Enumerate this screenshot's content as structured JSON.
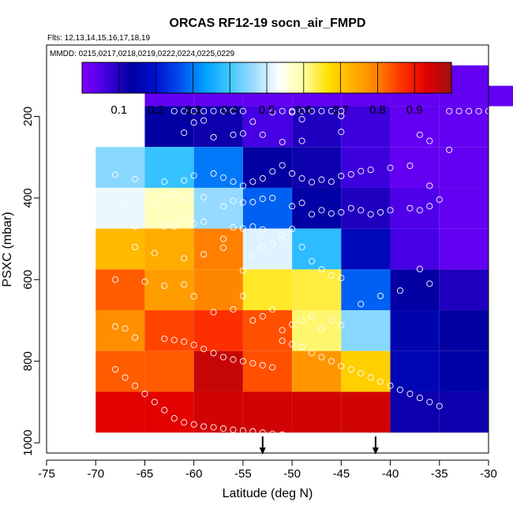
{
  "chart_data": {
    "type": "heatmap",
    "title": "ORCAS RF12-19 socn_air_FMPD",
    "flights_label": "Flts: 12,13,14,15,16,17,18,19",
    "dates_label": "MMDD: 0215,0217,0218,0219,0222,0224,0225,0229",
    "xlabel": "Latitude (deg N)",
    "ylabel": "PSXC (mbar)",
    "xlim": [
      -75,
      -30
    ],
    "ylim": [
      1025,
      25
    ],
    "x_ticks": [
      -75,
      -70,
      -65,
      -60,
      -55,
      -50,
      -45,
      -40,
      -35,
      -30
    ],
    "y_ticks": [
      200,
      400,
      600,
      800,
      1000
    ],
    "colorbar": {
      "range": [
        0,
        1
      ],
      "ticks": [
        0.1,
        0.2,
        0.3,
        0.4,
        0.5,
        0.6,
        0.7,
        0.8,
        0.9
      ],
      "colors": [
        "#7f00ff",
        "#4000e0",
        "#0000a0",
        "#0010d0",
        "#0050f0",
        "#00a0ff",
        "#40c8ff",
        "#a0dcff",
        "#ffffff",
        "#ffffa0",
        "#ffe000",
        "#ffb000",
        "#ff8000",
        "#ff3000",
        "#e00000",
        "#a01010"
      ]
    },
    "bin_width_deg": 5,
    "bin_height_mbar": 50,
    "columns": [
      {
        "lon0": -70,
        "cells": [
          [
            300,
            0.45
          ],
          [
            400,
            0.52
          ],
          [
            500,
            0.72
          ],
          [
            600,
            0.83
          ],
          [
            700,
            0.78
          ],
          [
            800,
            0.83
          ],
          [
            900,
            0.93
          ]
        ]
      },
      {
        "lon0": -65,
        "cells": [
          [
            100,
            0.03
          ],
          [
            200,
            0.13
          ],
          [
            300,
            0.39
          ],
          [
            400,
            0.58
          ],
          [
            500,
            0.74
          ],
          [
            600,
            0.76
          ],
          [
            700,
            0.85
          ],
          [
            800,
            0.83
          ],
          [
            900,
            0.93
          ]
        ]
      },
      {
        "lon0": -60,
        "cells": [
          [
            100,
            0.03
          ],
          [
            200,
            0.12
          ],
          [
            300,
            0.3
          ],
          [
            400,
            0.46
          ],
          [
            500,
            0.8
          ],
          [
            600,
            0.79
          ],
          [
            700,
            0.87
          ],
          [
            800,
            0.96
          ],
          [
            900,
            0.95
          ]
        ]
      },
      {
        "lon0": -55,
        "cells": [
          [
            100,
            0.03
          ],
          [
            200,
            0.06
          ],
          [
            300,
            0.13
          ],
          [
            400,
            0.28
          ],
          [
            500,
            0.51
          ],
          [
            600,
            0.65
          ],
          [
            700,
            0.84
          ],
          [
            800,
            0.84
          ],
          [
            900,
            0.95
          ]
        ]
      },
      {
        "lon0": -50,
        "cells": [
          [
            100,
            0.03
          ],
          [
            200,
            0.1
          ],
          [
            300,
            0.12
          ],
          [
            400,
            0.14
          ],
          [
            500,
            0.38
          ],
          [
            600,
            0.64
          ],
          [
            700,
            0.62
          ],
          [
            800,
            0.77
          ],
          [
            900,
            0.95
          ]
        ]
      },
      {
        "lon0": -45,
        "cells": [
          [
            100,
            0.03
          ],
          [
            200,
            0.07
          ],
          [
            300,
            0.07
          ],
          [
            400,
            0.1
          ],
          [
            500,
            0.17
          ],
          [
            600,
            0.28
          ],
          [
            700,
            0.45
          ],
          [
            800,
            0.69
          ],
          [
            900,
            0.95
          ]
        ]
      },
      {
        "lon0": -40,
        "cells": [
          [
            100,
            0.03
          ],
          [
            200,
            0.03
          ],
          [
            300,
            0.03
          ],
          [
            400,
            0.05
          ],
          [
            500,
            0.06
          ],
          [
            600,
            0.13
          ],
          [
            700,
            0.15
          ],
          [
            800,
            0.16
          ],
          [
            900,
            0.12
          ]
        ]
      },
      {
        "lon0": -35,
        "cells": [
          [
            100,
            0.03
          ],
          [
            200,
            0.03
          ],
          [
            300,
            0.03
          ],
          [
            400,
            0.03
          ],
          [
            500,
            0.03
          ],
          [
            600,
            0.1
          ],
          [
            700,
            0.13
          ],
          [
            800,
            0.14
          ],
          [
            900,
            0.12
          ]
        ]
      }
    ],
    "extra_cells": [
      [
        -35,
        150,
        0.03
      ],
      [
        -30,
        150,
        0.03
      ]
    ],
    "points": [
      [
        -62,
        187
      ],
      [
        -61,
        187
      ],
      [
        -60,
        187
      ],
      [
        -59,
        187
      ],
      [
        -58,
        187
      ],
      [
        -57,
        187
      ],
      [
        -56,
        187
      ],
      [
        -55,
        187
      ],
      [
        -51,
        187
      ],
      [
        -50,
        187
      ],
      [
        -49,
        187
      ],
      [
        -48,
        187
      ],
      [
        -47,
        187
      ],
      [
        -46,
        187
      ],
      [
        -45,
        187
      ],
      [
        -34,
        187
      ],
      [
        -33,
        187
      ],
      [
        -32,
        187
      ],
      [
        -31,
        187
      ],
      [
        -30,
        187
      ],
      [
        -29,
        187
      ],
      [
        -52,
        190
      ],
      [
        -50,
        190
      ],
      [
        -60,
        215
      ],
      [
        -59,
        210
      ],
      [
        -54,
        213
      ],
      [
        -49,
        207
      ],
      [
        -45,
        199
      ],
      [
        -61,
        240
      ],
      [
        -56,
        245
      ],
      [
        -55,
        242
      ],
      [
        -58,
        251
      ],
      [
        -53,
        245
      ],
      [
        -51,
        263
      ],
      [
        -49,
        260
      ],
      [
        -45,
        238
      ],
      [
        -37,
        245
      ],
      [
        -36,
        260
      ],
      [
        -34,
        282
      ],
      [
        -68,
        343
      ],
      [
        -66,
        354
      ],
      [
        -63,
        360
      ],
      [
        -61,
        357
      ],
      [
        -60,
        345
      ],
      [
        -58,
        340
      ],
      [
        -57,
        350
      ],
      [
        -56,
        360
      ],
      [
        -55,
        370
      ],
      [
        -54,
        360
      ],
      [
        -53,
        352
      ],
      [
        -52,
        335
      ],
      [
        -51,
        320
      ],
      [
        -50,
        340
      ],
      [
        -49,
        352
      ],
      [
        -48,
        361
      ],
      [
        -47,
        355
      ],
      [
        -46,
        360
      ],
      [
        -45,
        346
      ],
      [
        -44,
        342
      ],
      [
        -43,
        334
      ],
      [
        -42,
        331
      ],
      [
        -40,
        326
      ],
      [
        -38,
        321
      ],
      [
        -35,
        404
      ],
      [
        -36,
        370
      ],
      [
        -67,
        413
      ],
      [
        -64,
        410
      ],
      [
        -63,
        400
      ],
      [
        -62,
        390
      ],
      [
        -61,
        405
      ],
      [
        -59,
        398
      ],
      [
        -57,
        420
      ],
      [
        -56,
        407
      ],
      [
        -55,
        411
      ],
      [
        -54,
        410
      ],
      [
        -53,
        402
      ],
      [
        -52,
        400
      ],
      [
        -50,
        420
      ],
      [
        -49,
        412
      ],
      [
        -48,
        440
      ],
      [
        -47,
        430
      ],
      [
        -46,
        438
      ],
      [
        -45,
        435
      ],
      [
        -44,
        425
      ],
      [
        -43,
        430
      ],
      [
        -42,
        440
      ],
      [
        -41,
        435
      ],
      [
        -40,
        430
      ],
      [
        -38,
        425
      ],
      [
        -37,
        430
      ],
      [
        -36,
        420
      ],
      [
        -66,
        470
      ],
      [
        -63,
        469
      ],
      [
        -62,
        470
      ],
      [
        -61,
        450
      ],
      [
        -60,
        463
      ],
      [
        -59,
        458
      ],
      [
        -57,
        500
      ],
      [
        -56,
        472
      ],
      [
        -55,
        475
      ],
      [
        -54,
        470
      ],
      [
        -53,
        477
      ],
      [
        -51,
        490
      ],
      [
        -50,
        476
      ],
      [
        -66,
        520
      ],
      [
        -64,
        535
      ],
      [
        -61,
        548
      ],
      [
        -59,
        538
      ],
      [
        -57,
        522
      ],
      [
        -55,
        578
      ],
      [
        -54,
        540
      ],
      [
        -53,
        520
      ],
      [
        -52,
        512
      ],
      [
        -51,
        506
      ],
      [
        -49,
        520
      ],
      [
        -48,
        555
      ],
      [
        -47,
        575
      ],
      [
        -46,
        590
      ],
      [
        -45,
        596
      ],
      [
        -43,
        660
      ],
      [
        -41,
        640
      ],
      [
        -39,
        627
      ],
      [
        -36,
        610
      ],
      [
        -37,
        574
      ],
      [
        -68,
        600
      ],
      [
        -65,
        605
      ],
      [
        -63,
        615
      ],
      [
        -61,
        612
      ],
      [
        -60,
        641
      ],
      [
        -58,
        680
      ],
      [
        -56,
        673
      ],
      [
        -55,
        640
      ],
      [
        -54,
        700
      ],
      [
        -53,
        690
      ],
      [
        -52,
        673
      ],
      [
        -51,
        724
      ],
      [
        -50,
        710
      ],
      [
        -49,
        700
      ],
      [
        -48,
        690
      ],
      [
        -47,
        720
      ],
      [
        -46,
        700
      ],
      [
        -45,
        712
      ],
      [
        -68,
        715
      ],
      [
        -67,
        720
      ],
      [
        -66,
        742
      ],
      [
        -63,
        745
      ],
      [
        -62,
        748
      ],
      [
        -61,
        752
      ],
      [
        -60,
        760
      ],
      [
        -59,
        770
      ],
      [
        -58,
        780
      ],
      [
        -57,
        790
      ],
      [
        -56,
        796
      ],
      [
        -55,
        800
      ],
      [
        -54,
        805
      ],
      [
        -53,
        810
      ],
      [
        -52,
        815
      ],
      [
        -51,
        750
      ],
      [
        -50,
        758
      ],
      [
        -49,
        765
      ],
      [
        -48,
        780
      ],
      [
        -47,
        790
      ],
      [
        -46,
        800
      ],
      [
        -45,
        812
      ],
      [
        -44,
        820
      ],
      [
        -43,
        830
      ],
      [
        -42,
        840
      ],
      [
        -41,
        850
      ],
      [
        -40,
        860
      ],
      [
        -39,
        870
      ],
      [
        -38,
        880
      ],
      [
        -37,
        890
      ],
      [
        -36,
        900
      ],
      [
        -35,
        910
      ],
      [
        -68,
        820
      ],
      [
        -67,
        840
      ],
      [
        -66,
        860
      ],
      [
        -65,
        880
      ],
      [
        -64,
        900
      ],
      [
        -63,
        920
      ],
      [
        -62,
        940
      ],
      [
        -61,
        950
      ],
      [
        -60,
        955
      ],
      [
        -59,
        960
      ],
      [
        -58,
        962
      ],
      [
        -57,
        965
      ],
      [
        -56,
        968
      ],
      [
        -55,
        970
      ],
      [
        -54,
        972
      ],
      [
        -53,
        975
      ],
      [
        -52,
        978
      ],
      [
        -51,
        980
      ],
      [
        -50,
        984
      ],
      [
        -49,
        986
      ],
      [
        -48,
        990
      ],
      [
        -47,
        995
      ],
      [
        -46,
        1000
      ],
      [
        -45,
        1002
      ],
      [
        -44,
        1003
      ],
      [
        -43,
        1004
      ],
      [
        -42,
        1005
      ],
      [
        -41,
        1006
      ],
      [
        -40,
        1007
      ],
      [
        -39,
        1008
      ],
      [
        -38,
        1009
      ],
      [
        -37,
        1010
      ],
      [
        -36,
        1011
      ],
      [
        -35,
        1012
      ]
    ],
    "arrows": [
      -53,
      -41.5
    ]
  }
}
